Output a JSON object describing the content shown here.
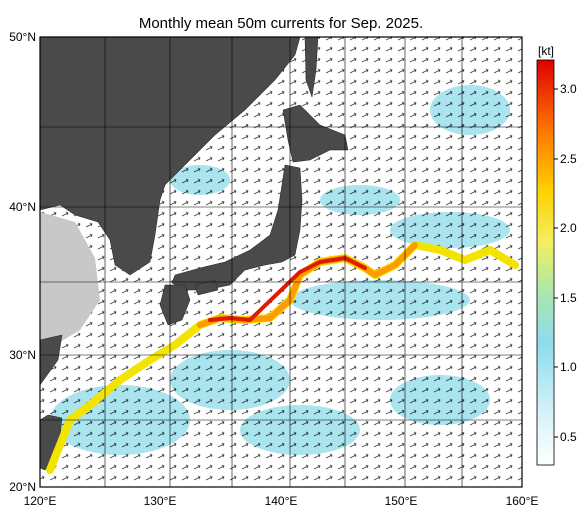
{
  "title": "Monthly mean 50m currents for Sep. 2025.",
  "lat_labels": [
    "50°N",
    "40°N",
    "30°N",
    "20°N"
  ],
  "lon_labels": [
    "120°E",
    "130°E",
    "140°E",
    "150°E",
    "160°E"
  ],
  "colorbar": {
    "unit": "[kt]",
    "ticks": [
      "3.0",
      "2.5",
      "2.0",
      "1.5",
      "1.0",
      "0.5"
    ]
  }
}
